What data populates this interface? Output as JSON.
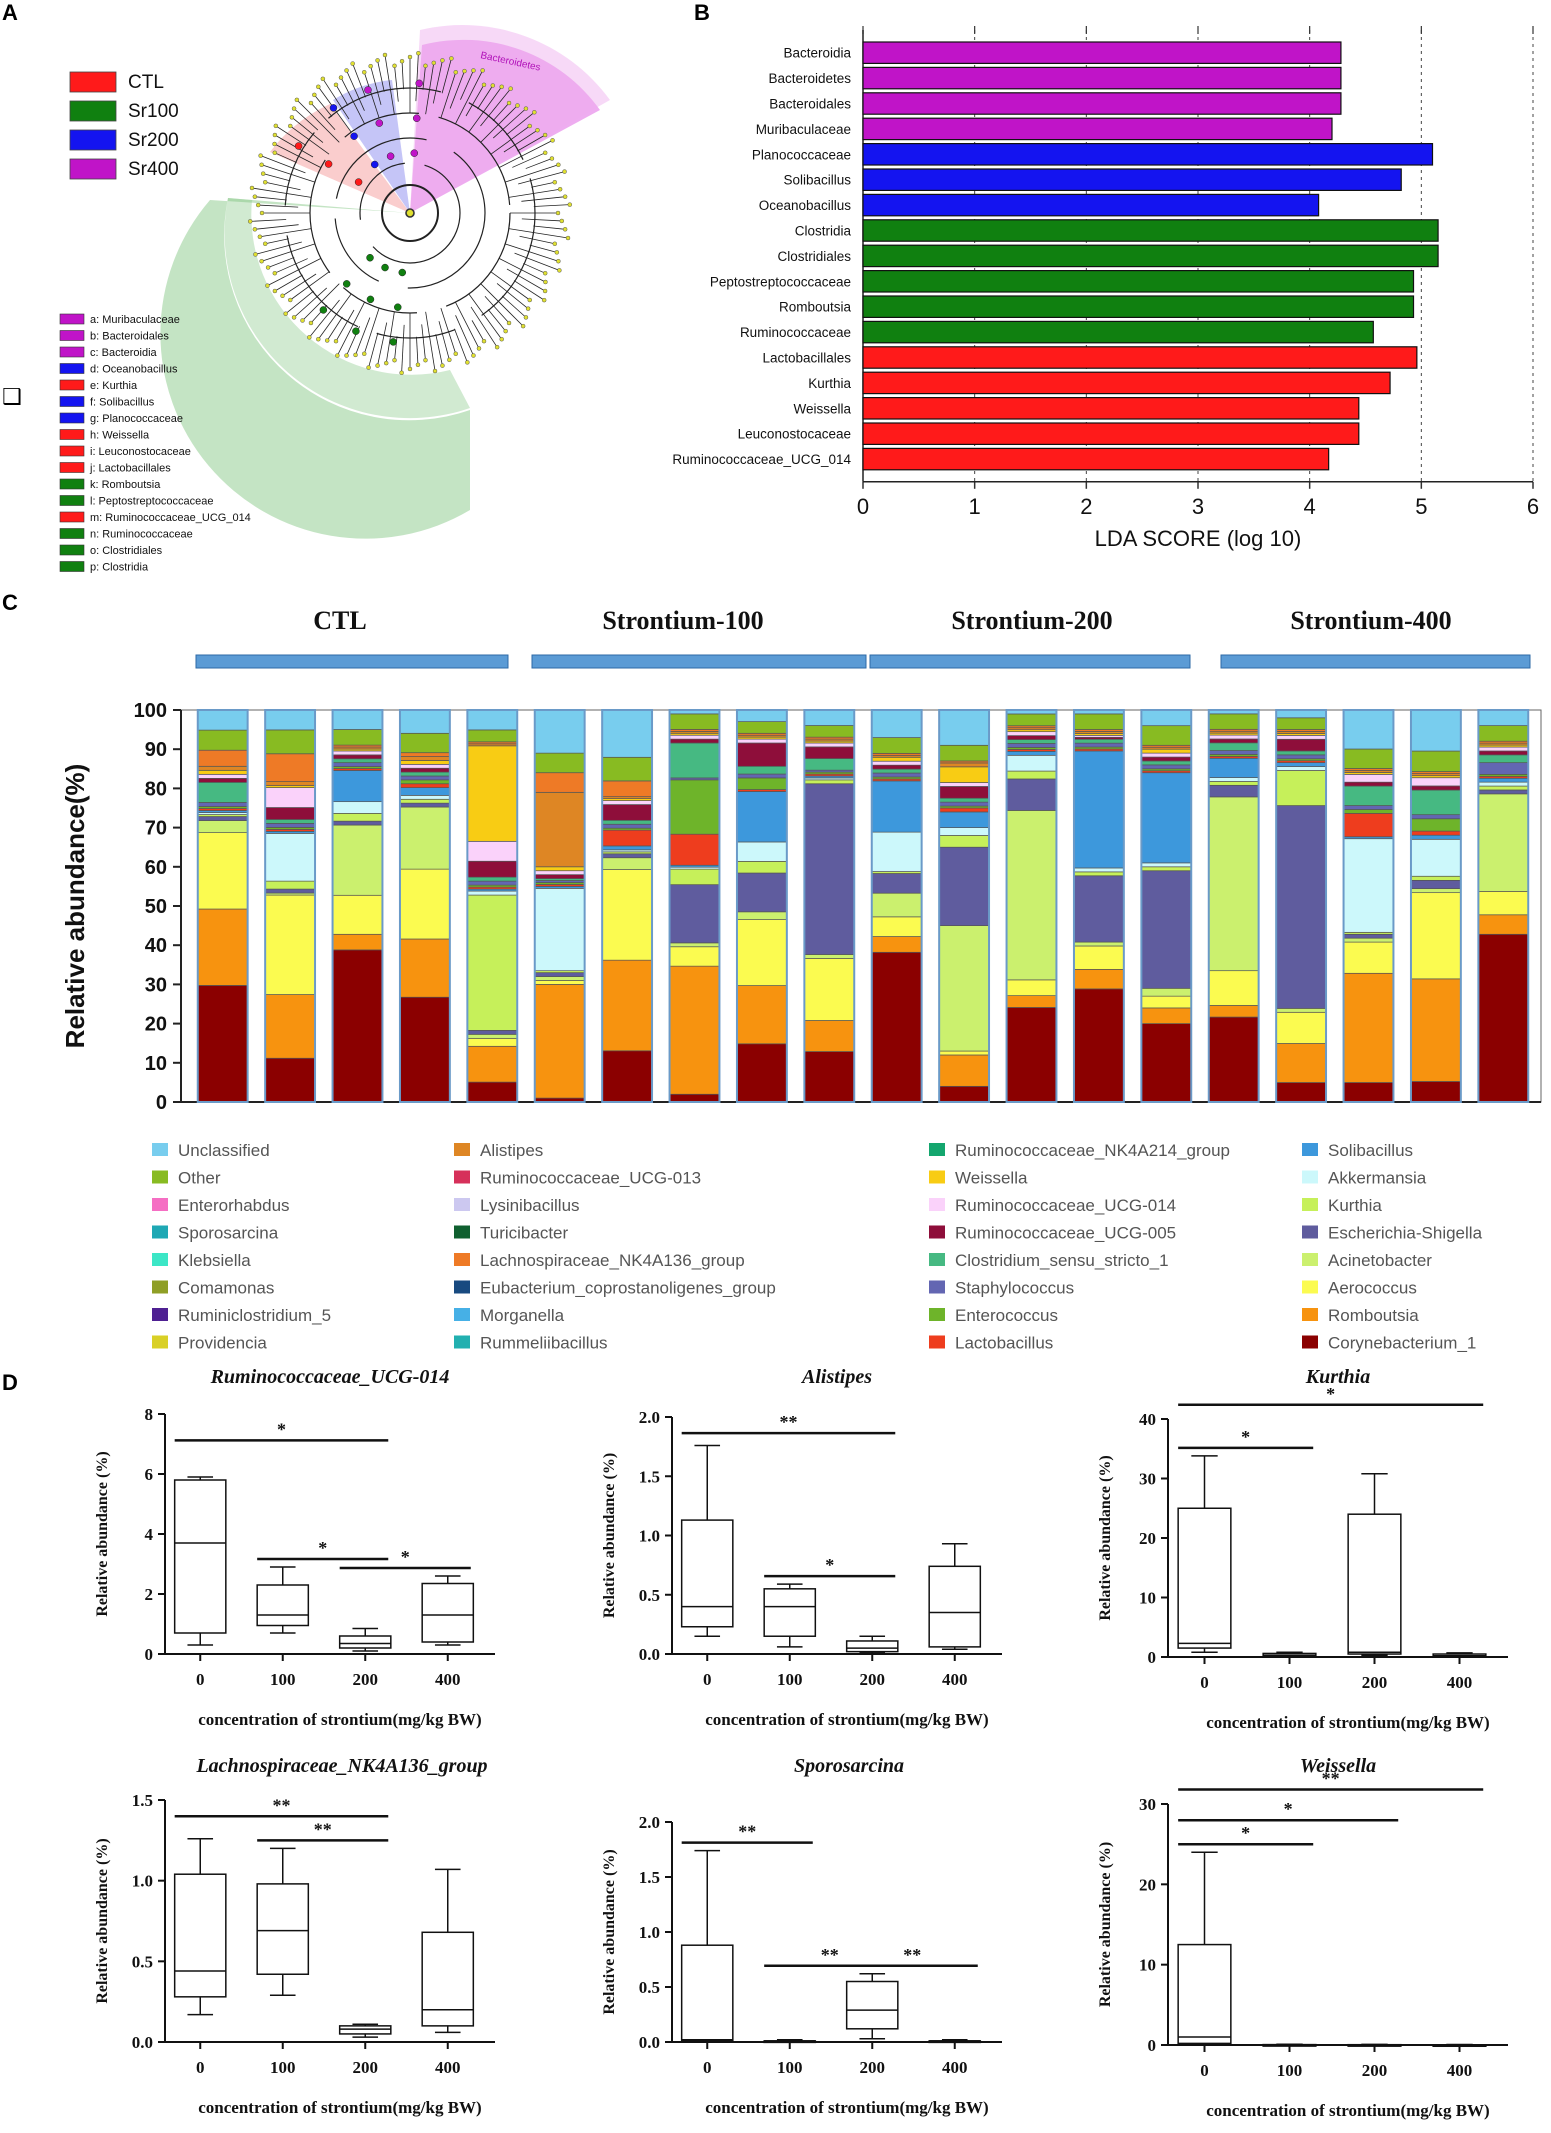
{
  "panel_labels": [
    "A",
    "B",
    "C",
    "D"
  ],
  "colors": {
    "CTL": "#ff1a1a",
    "Sr100": "#108010",
    "Sr200": "#1414f0",
    "Sr400": "#c014c8",
    "group_bar": "#5b9bd5"
  },
  "panel_a": {
    "legend": [
      {
        "label": "CTL",
        "color": "#ff1a1a"
      },
      {
        "label": "Sr100",
        "color": "#108010"
      },
      {
        "label": "Sr200",
        "color": "#1414f0"
      },
      {
        "label": "Sr400",
        "color": "#c014c8"
      }
    ],
    "clade_label": "Bacteroidetes",
    "taxa_legend": [
      {
        "text": "a: Muribaculaceae",
        "color": "#c014c8"
      },
      {
        "text": "b: Bacteroidales",
        "color": "#c014c8"
      },
      {
        "text": "c: Bacteroidia",
        "color": "#c014c8"
      },
      {
        "text": "d: Oceanobacillus",
        "color": "#1414f0"
      },
      {
        "text": "e: Kurthia",
        "color": "#ff1a1a"
      },
      {
        "text": "f: Solibacillus",
        "color": "#1414f0"
      },
      {
        "text": "g: Planococcaceae",
        "color": "#1414f0"
      },
      {
        "text": "h: Weissella",
        "color": "#ff1a1a"
      },
      {
        "text": "i: Leuconostocaceae",
        "color": "#ff1a1a"
      },
      {
        "text": "j: Lactobacillales",
        "color": "#ff1a1a"
      },
      {
        "text": "k: Romboutsia",
        "color": "#108010"
      },
      {
        "text": "l: Peptostreptococcaceae",
        "color": "#108010"
      },
      {
        "text": "m: Ruminococcaceae_UCG_014",
        "color": "#ff1a1a"
      },
      {
        "text": "n: Ruminococcaceae",
        "color": "#108010"
      },
      {
        "text": "o: Clostridiales",
        "color": "#108010"
      },
      {
        "text": "p: Clostridia",
        "color": "#108010"
      }
    ]
  },
  "chart_data": [
    {
      "id": "B",
      "type": "bar",
      "orientation": "horizontal",
      "xlabel": "LDA SCORE (log 10)",
      "xlim": [
        0,
        6
      ],
      "xticks": [
        "0",
        "1",
        "2",
        "3",
        "4",
        "5",
        "6"
      ],
      "categories": [
        "Bacteroidia",
        "Bacteroidetes",
        "Bacteroidales",
        "Muribaculaceae",
        "Planococcaceae",
        "Solibacillus",
        "Oceanobacillus",
        "Clostridia",
        "Clostridiales",
        "Peptostreptococcaceae",
        "Romboutsia",
        "Ruminococcaceae",
        "Lactobacillales",
        "Kurthia",
        "Weissella",
        "Leuconostocaceae",
        "Ruminococcaceae_UCG_014"
      ],
      "values": [
        4.28,
        4.28,
        4.28,
        4.2,
        5.1,
        4.82,
        4.08,
        5.15,
        5.15,
        4.93,
        4.93,
        4.57,
        4.96,
        4.72,
        4.44,
        4.44,
        4.17
      ],
      "groups": [
        "Sr400",
        "Sr400",
        "Sr400",
        "Sr400",
        "Sr200",
        "Sr200",
        "Sr200",
        "Sr100",
        "Sr100",
        "Sr100",
        "Sr100",
        "Sr100",
        "CTL",
        "CTL",
        "CTL",
        "CTL",
        "CTL"
      ]
    },
    {
      "id": "C",
      "type": "bar",
      "stacked": true,
      "ylabel": "Relative abundance(%)",
      "ylim": [
        0,
        100
      ],
      "yticks": [
        "0",
        "10",
        "20",
        "30",
        "40",
        "50",
        "60",
        "70",
        "80",
        "90",
        "100"
      ],
      "group_titles": [
        "CTL",
        "Strontium-100",
        "Strontium-200",
        "Strontium-400"
      ],
      "samples_per_group": 5,
      "stack_order": [
        "Corynebacterium_1",
        "Romboutsia",
        "Aerococcus",
        "Acinetobacter",
        "Escherichia-Shigella",
        "Kurthia",
        "Akkermansia",
        "Solibacillus",
        "Lactobacillus",
        "Enterococcus",
        "Staphylococcus",
        "Clostridium_sensu_stricto_1",
        "Ruminococcaceae_UCG-005",
        "Ruminococcaceae_UCG-014",
        "Weissella",
        "Alistipes",
        "Lachnospiraceae_NK4A136_group",
        "Other",
        "Unclassified"
      ],
      "stack_colors": [
        "#8b0000",
        "#f7930f",
        "#fbfb50",
        "#cbf06e",
        "#5f5c9e",
        "#c6f05a",
        "#ccf8fb",
        "#3d98dc",
        "#ee3d1e",
        "#6eb42a",
        "#6366b2",
        "#46b982",
        "#8e0e3a",
        "#fad2fa",
        "#f8cc14",
        "#de8624",
        "#ee7a26",
        "#88bb22",
        "#78cdee"
      ],
      "samples": [
        [
          29,
          19,
          19,
          3,
          1,
          0.5,
          0.5,
          0.5,
          0.5,
          0.5,
          1,
          5,
          1,
          1,
          1,
          1,
          4,
          5,
          5
        ],
        [
          11,
          16,
          25,
          0.5,
          1,
          2,
          12,
          0.5,
          0.5,
          0.5,
          1,
          1,
          3,
          5,
          0.5,
          1,
          7,
          6,
          5
        ],
        [
          39,
          4,
          10,
          18,
          1,
          2,
          3,
          8,
          0.5,
          0.5,
          1,
          1,
          1,
          1,
          0.5,
          0.5,
          0.5,
          4,
          5
        ],
        [
          27,
          15,
          18,
          16,
          1,
          1,
          1,
          2,
          1,
          1,
          1,
          1,
          1,
          1,
          1,
          1,
          1,
          5,
          6
        ],
        [
          5,
          9,
          2,
          1,
          1,
          34,
          1,
          0.5,
          0.5,
          0.5,
          1,
          1,
          4,
          5,
          24,
          0.5,
          0.5,
          3,
          5
        ],
        [
          1,
          29,
          1,
          1,
          1,
          0.5,
          21,
          0.5,
          0.5,
          0.5,
          0.5,
          0.5,
          1,
          1,
          1,
          19,
          5,
          5,
          11
        ],
        [
          13,
          23,
          23,
          3,
          1,
          0.5,
          0.5,
          1,
          4,
          0.5,
          1,
          1,
          4,
          1,
          0.5,
          0.5,
          4,
          6,
          12
        ],
        [
          2,
          33,
          5,
          1,
          15,
          4,
          0.5,
          0.5,
          8,
          14,
          0.5,
          9,
          1,
          1,
          0.5,
          0.5,
          0.5,
          4,
          1
        ],
        [
          15,
          15,
          17,
          2,
          10,
          3,
          5,
          13,
          0.5,
          3,
          1,
          2,
          6,
          1,
          0.5,
          0.5,
          0.5,
          3,
          3
        ],
        [
          13,
          8,
          16,
          1,
          44,
          1,
          0.5,
          0.5,
          0.5,
          0.5,
          0.5,
          3,
          3,
          1,
          0.5,
          0.5,
          0.5,
          3,
          4
        ],
        [
          38,
          4,
          5,
          6,
          5,
          0.5,
          10,
          13,
          0.5,
          0.5,
          1,
          1,
          1,
          1,
          1,
          0.5,
          0.5,
          4,
          7
        ],
        [
          4,
          8,
          1,
          32,
          20,
          3,
          2,
          4,
          1,
          0.5,
          1,
          1,
          3,
          1,
          4,
          1,
          0.5,
          4,
          9
        ],
        [
          24,
          3,
          4,
          43,
          8,
          2,
          4,
          1,
          0.5,
          0.5,
          1,
          1,
          1,
          1,
          0.5,
          0.5,
          0.5,
          3,
          1
        ],
        [
          29,
          5,
          6,
          1,
          17,
          1,
          1,
          30,
          0.5,
          0.5,
          1,
          1,
          0.5,
          0.5,
          0.5,
          0.5,
          0.5,
          4,
          1
        ],
        [
          20,
          4,
          3,
          2,
          30,
          1,
          1,
          23,
          0.5,
          0.5,
          1,
          1,
          1,
          1,
          1,
          0.5,
          0.5,
          5,
          4
        ],
        [
          22,
          3,
          9,
          45,
          3,
          1,
          1,
          5,
          0.5,
          0.5,
          1,
          2,
          1,
          1,
          0.5,
          0.5,
          0.5,
          4,
          1
        ],
        [
          5,
          10,
          8,
          1,
          52,
          9,
          1,
          1,
          0.5,
          0.5,
          1,
          1,
          3,
          1,
          0.5,
          0.5,
          0.5,
          3,
          2
        ],
        [
          5,
          28,
          8,
          1,
          1,
          0.5,
          24,
          0.5,
          6,
          1,
          1,
          5,
          1,
          2,
          0.5,
          0.5,
          0.5,
          5,
          10
        ],
        [
          5,
          25,
          21,
          1,
          2,
          1,
          9,
          1,
          1,
          3,
          1,
          6,
          1,
          2,
          0.5,
          0.5,
          0.5,
          5,
          10
        ],
        [
          43,
          5,
          6,
          25,
          1,
          1,
          1,
          1,
          0.5,
          0.5,
          3,
          2,
          1,
          1,
          0.5,
          0.5,
          0.5,
          4,
          4
        ]
      ],
      "legend": [
        {
          "label": "Unclassified",
          "color": "#78cdee"
        },
        {
          "label": "Other",
          "color": "#88bb22"
        },
        {
          "label": "Enterorhabdus",
          "color": "#f56ec3"
        },
        {
          "label": "Sporosarcina",
          "color": "#1ea8b4"
        },
        {
          "label": "Klebsiella",
          "color": "#3ce6c6"
        },
        {
          "label": "Comamonas",
          "color": "#8f9f26"
        },
        {
          "label": "Ruminiclostridium_5",
          "color": "#4e2092"
        },
        {
          "label": "Providencia",
          "color": "#d9d026"
        },
        {
          "label": "Alistipes",
          "color": "#de8624"
        },
        {
          "label": "Ruminococcaceae_UCG-013",
          "color": "#d6305a"
        },
        {
          "label": "Lysinibacillus",
          "color": "#ccc8f0"
        },
        {
          "label": "Turicibacter",
          "color": "#106030"
        },
        {
          "label": "Lachnospiraceae_NK4A136_group",
          "color": "#ee7a26"
        },
        {
          "label": "Eubacterium_coprostanoligenes_group",
          "color": "#184a80"
        },
        {
          "label": "Morganella",
          "color": "#46b0e6"
        },
        {
          "label": "Rummeliibacillus",
          "color": "#22b0b0"
        },
        {
          "label": "Ruminococcaceae_NK4A214_group",
          "color": "#14a66e"
        },
        {
          "label": "Weissella",
          "color": "#f8cc14"
        },
        {
          "label": "Ruminococcaceae_UCG-014",
          "color": "#fad2fa"
        },
        {
          "label": "Ruminococcaceae_UCG-005",
          "color": "#8e0e3a"
        },
        {
          "label": "Clostridium_sensu_stricto_1",
          "color": "#46b982"
        },
        {
          "label": "Staphylococcus",
          "color": "#6366b2"
        },
        {
          "label": "Enterococcus",
          "color": "#6eb42a"
        },
        {
          "label": "Lactobacillus",
          "color": "#ee3d1e"
        },
        {
          "label": "Solibacillus",
          "color": "#3d98dc"
        },
        {
          "label": "Akkermansia",
          "color": "#ccf8fb"
        },
        {
          "label": "Kurthia",
          "color": "#c6f05a"
        },
        {
          "label": "Escherichia-Shigella",
          "color": "#5f5c9e"
        },
        {
          "label": "Acinetobacter",
          "color": "#cbf06e"
        },
        {
          "label": "Aerococcus",
          "color": "#fbfb50"
        },
        {
          "label": "Romboutsia",
          "color": "#f7930f"
        },
        {
          "label": "Corynebacterium_1",
          "color": "#8b0000"
        }
      ]
    },
    {
      "id": "D",
      "type": "box",
      "xlabel": "concentration of strontium(mg/kg BW)",
      "ylabel": "Relative abundance (%)",
      "categories": [
        "0",
        "100",
        "200",
        "400"
      ],
      "panels": [
        {
          "title": "Ruminococcaceae_UCG-014",
          "ylim": [
            0,
            8
          ],
          "yticks": [
            "0",
            "2",
            "4",
            "6",
            "8"
          ],
          "boxes": [
            [
              0.3,
              0.7,
              3.7,
              5.8,
              5.9
            ],
            [
              0.7,
              0.95,
              1.3,
              2.3,
              2.9
            ],
            [
              0.1,
              0.2,
              0.35,
              0.6,
              0.85
            ],
            [
              0.3,
              0.4,
              1.3,
              2.35,
              2.6
            ]
          ],
          "sig": [
            {
              "from": 0,
              "to": 2,
              "label": "*"
            },
            {
              "from": 1,
              "to": 2,
              "label": "*"
            },
            {
              "from": 2,
              "to": 3,
              "label": "*"
            }
          ]
        },
        {
          "title": "Alistipes",
          "ylim": [
            0,
            2
          ],
          "yticks": [
            "0.0",
            "0.5",
            "1.0",
            "1.5",
            "2.0"
          ],
          "boxes": [
            [
              0.15,
              0.23,
              0.4,
              1.13,
              1.76
            ],
            [
              0.06,
              0.15,
              0.4,
              0.55,
              0.59
            ],
            [
              0.01,
              0.02,
              0.05,
              0.11,
              0.15
            ],
            [
              0.04,
              0.06,
              0.35,
              0.74,
              0.93
            ]
          ],
          "sig": [
            {
              "from": 0,
              "to": 2,
              "label": "**"
            },
            {
              "from": 1,
              "to": 2,
              "label": "*"
            }
          ]
        },
        {
          "title": "Kurthia",
          "ylim": [
            0,
            40
          ],
          "yticks": [
            "0",
            "10",
            "20",
            "30",
            "40"
          ],
          "boxes": [
            [
              0.8,
              1.5,
              2.3,
              25,
              33.8
            ],
            [
              0.05,
              0.1,
              0.3,
              0.6,
              0.8
            ],
            [
              0.3,
              0.5,
              0.8,
              24,
              30.8
            ],
            [
              0.05,
              0.1,
              0.2,
              0.5,
              0.7
            ]
          ],
          "sig": [
            {
              "from": 0,
              "to": 1,
              "label": "*"
            },
            {
              "from": 0,
              "to": 3,
              "label": "*"
            }
          ]
        },
        {
          "title": "Lachnospiraceae_NK4A136_group",
          "ylim": [
            0,
            1.5
          ],
          "yticks": [
            "0.0",
            "0.5",
            "1.0",
            "1.5"
          ],
          "boxes": [
            [
              0.17,
              0.28,
              0.44,
              1.04,
              1.26
            ],
            [
              0.29,
              0.42,
              0.69,
              0.98,
              1.2
            ],
            [
              0.03,
              0.05,
              0.08,
              0.1,
              0.11
            ],
            [
              0.06,
              0.1,
              0.2,
              0.68,
              1.07
            ]
          ],
          "sig": [
            {
              "from": 0,
              "to": 2,
              "label": "**"
            },
            {
              "from": 1,
              "to": 2,
              "label": "**"
            }
          ]
        },
        {
          "title": "Sporosarcina",
          "ylim": [
            0,
            2
          ],
          "yticks": [
            "0.0",
            "0.5",
            "1.0",
            "1.5",
            "2.0"
          ],
          "boxes": [
            [
              0,
              0.01,
              0.02,
              0.88,
              1.74
            ],
            [
              0,
              0,
              0.01,
              0.01,
              0.02
            ],
            [
              0.03,
              0.12,
              0.29,
              0.55,
              0.62
            ],
            [
              0,
              0,
              0.01,
              0.01,
              0.02
            ]
          ],
          "sig": [
            {
              "from": 0,
              "to": 1,
              "label": "**"
            },
            {
              "from": 1,
              "to": 2,
              "label": "**"
            },
            {
              "from": 2,
              "to": 3,
              "label": "**"
            }
          ]
        },
        {
          "title": "Weissella",
          "ylim": [
            0,
            30
          ],
          "yticks": [
            "0",
            "10",
            "20",
            "30"
          ],
          "boxes": [
            [
              0,
              0.2,
              1,
              12.5,
              24
            ],
            [
              0,
              0,
              0.02,
              0.05,
              0.1
            ],
            [
              0,
              0,
              0.02,
              0.04,
              0.08
            ],
            [
              0,
              0,
              0.01,
              0.03,
              0.06
            ]
          ],
          "sig": [
            {
              "from": 0,
              "to": 1,
              "label": "*"
            },
            {
              "from": 0,
              "to": 2,
              "label": "*"
            },
            {
              "from": 0,
              "to": 3,
              "label": "**"
            }
          ]
        }
      ]
    }
  ]
}
